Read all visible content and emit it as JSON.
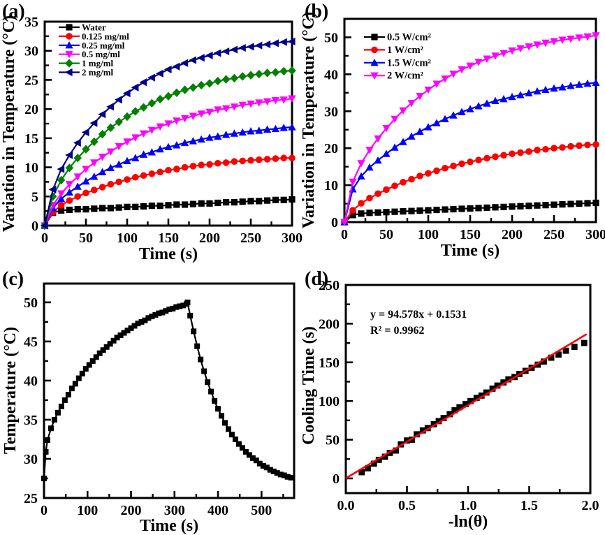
{
  "background": "#ffffff",
  "panel_labels": [
    "(a)",
    "(b)",
    "(c)",
    "(d)"
  ],
  "colors": {
    "black": "#000000",
    "red": "#ff0000",
    "blue": "#0000ff",
    "magenta": "#ff00ff",
    "green": "#008000",
    "navy": "#00008b",
    "fit_line": "#ff0000"
  },
  "chart_data": [
    {
      "type": "line",
      "panel": "a",
      "xlabel": "Time (s)",
      "ylabel": "Variation in Temperature (°C)",
      "xlim": [
        0,
        300
      ],
      "ylim": [
        0,
        35
      ],
      "xticks": [
        0,
        50,
        100,
        150,
        200,
        250,
        300
      ],
      "yticks": [
        0,
        5,
        10,
        15,
        20,
        25,
        30,
        35
      ],
      "x_minor": 25,
      "y_minor": 2.5,
      "grid": false,
      "legend": true,
      "legend_position": "top-left",
      "x": [
        0,
        10,
        20,
        30,
        40,
        50,
        60,
        70,
        80,
        90,
        100,
        110,
        120,
        130,
        140,
        150,
        160,
        170,
        180,
        190,
        200,
        210,
        220,
        230,
        240,
        250,
        260,
        270,
        280,
        290,
        300
      ],
      "series": [
        {
          "name": "Water",
          "color": "#000000",
          "marker": "square",
          "values": [
            0,
            2.2,
            2.6,
            2.7,
            2.8,
            2.8,
            2.9,
            3.0,
            3.0,
            3.1,
            3.2,
            3.2,
            3.3,
            3.4,
            3.4,
            3.5,
            3.6,
            3.6,
            3.7,
            3.8,
            3.8,
            3.9,
            4.0,
            4.0,
            4.1,
            4.2,
            4.2,
            4.3,
            4.4,
            4.4,
            4.5
          ]
        },
        {
          "name": "0.125 mg/ml",
          "color": "#ff0000",
          "marker": "circle",
          "values": [
            0,
            2.3,
            3.5,
            4.3,
            5.0,
            5.6,
            6.1,
            6.6,
            7.1,
            7.5,
            7.9,
            8.3,
            8.6,
            8.9,
            9.2,
            9.5,
            9.7,
            10.0,
            10.2,
            10.4,
            10.5,
            10.7,
            10.8,
            11.0,
            11.1,
            11.2,
            11.3,
            11.4,
            11.5,
            11.6,
            11.6
          ]
        },
        {
          "name": "0.25 mg/ml",
          "color": "#0000ff",
          "marker": "triangle-up",
          "values": [
            0,
            3.0,
            4.6,
            5.7,
            6.7,
            7.6,
            8.4,
            9.2,
            9.9,
            10.5,
            11.1,
            11.6,
            12.2,
            12.6,
            13.1,
            13.5,
            13.8,
            14.2,
            14.5,
            14.8,
            15.1,
            15.3,
            15.6,
            15.8,
            16.0,
            16.2,
            16.3,
            16.5,
            16.6,
            16.8,
            16.9
          ]
        },
        {
          "name": "0.5 mg/ml",
          "color": "#ff00ff",
          "marker": "triangle-down",
          "values": [
            0,
            3.5,
            5.5,
            7.1,
            8.4,
            9.7,
            10.8,
            11.8,
            12.7,
            13.6,
            14.4,
            15.1,
            15.8,
            16.4,
            17.0,
            17.5,
            18.0,
            18.4,
            18.8,
            19.2,
            19.5,
            19.9,
            20.1,
            20.4,
            20.7,
            20.9,
            21.1,
            21.3,
            21.5,
            21.6,
            21.8
          ]
        },
        {
          "name": "1 mg/ml",
          "color": "#008000",
          "marker": "diamond",
          "values": [
            0,
            5.0,
            7.8,
            9.9,
            11.6,
            13.1,
            14.4,
            15.7,
            16.8,
            17.8,
            18.7,
            19.6,
            20.3,
            21.0,
            21.7,
            22.2,
            22.8,
            23.3,
            23.7,
            24.1,
            24.4,
            24.8,
            25.1,
            25.3,
            25.6,
            25.8,
            26.0,
            26.2,
            26.3,
            26.5,
            26.6
          ]
        },
        {
          "name": "2 mg/ml",
          "color": "#00008b",
          "marker": "triangle-left",
          "values": [
            0,
            6.2,
            9.7,
            12.1,
            14.2,
            16.0,
            17.6,
            19.1,
            20.4,
            21.6,
            22.7,
            23.7,
            24.6,
            25.4,
            26.1,
            26.8,
            27.3,
            27.9,
            28.4,
            28.8,
            29.2,
            29.6,
            29.9,
            30.2,
            30.5,
            30.7,
            30.9,
            31.1,
            31.3,
            31.5,
            31.6
          ]
        }
      ]
    },
    {
      "type": "line",
      "panel": "b",
      "xlabel": "Time (s)",
      "ylabel": "Variation in Temperature (°C)",
      "xlim": [
        0,
        300
      ],
      "ylim": [
        0,
        55
      ],
      "xticks": [
        0,
        50,
        100,
        150,
        200,
        250,
        300
      ],
      "yticks": [
        0,
        10,
        20,
        30,
        40,
        50
      ],
      "x_minor": 25,
      "y_minor": 5,
      "grid": false,
      "legend": true,
      "legend_position": "top-left",
      "x": [
        0,
        10,
        20,
        30,
        40,
        50,
        60,
        70,
        80,
        90,
        100,
        110,
        120,
        130,
        140,
        150,
        160,
        170,
        180,
        190,
        200,
        210,
        220,
        230,
        240,
        250,
        260,
        270,
        280,
        290,
        300
      ],
      "series": [
        {
          "name": "0.5 W/cm²",
          "color": "#000000",
          "marker": "square",
          "values": [
            0,
            1.9,
            2.3,
            2.5,
            2.6,
            2.7,
            2.8,
            2.9,
            3.0,
            3.1,
            3.2,
            3.3,
            3.4,
            3.5,
            3.6,
            3.7,
            3.8,
            3.9,
            4.0,
            4.1,
            4.2,
            4.3,
            4.4,
            4.5,
            4.6,
            4.7,
            4.8,
            4.9,
            5.0,
            5.1,
            5.2
          ]
        },
        {
          "name": "1 W/cm²",
          "color": "#ff0000",
          "marker": "circle",
          "values": [
            0,
            3.2,
            5.1,
            6.5,
            7.7,
            8.8,
            9.8,
            10.8,
            11.6,
            12.5,
            13.2,
            13.9,
            14.6,
            15.2,
            15.8,
            16.3,
            16.8,
            17.3,
            17.7,
            18.1,
            18.5,
            18.8,
            19.1,
            19.5,
            19.7,
            20.0,
            20.2,
            20.5,
            20.7,
            20.9,
            21.0
          ]
        },
        {
          "name": "1.5 W/cm²",
          "color": "#0000ff",
          "marker": "triangle-up",
          "values": [
            0,
            8.9,
            12.4,
            14.8,
            16.7,
            18.5,
            20.2,
            21.7,
            23.2,
            24.5,
            25.7,
            26.8,
            27.9,
            28.9,
            29.8,
            30.6,
            31.4,
            32.1,
            32.8,
            33.3,
            33.9,
            34.4,
            34.9,
            35.4,
            35.8,
            36.2,
            36.5,
            36.9,
            37.2,
            37.5,
            37.7
          ]
        },
        {
          "name": "2 W/cm²",
          "color": "#ff00ff",
          "marker": "triangle-down",
          "values": [
            0,
            10.9,
            15.9,
            19.5,
            22.6,
            25.4,
            27.9,
            30.2,
            32.2,
            34.1,
            35.8,
            37.4,
            38.8,
            40.1,
            41.3,
            42.3,
            43.3,
            44.2,
            45.0,
            45.7,
            46.4,
            47.0,
            47.5,
            48.0,
            48.5,
            48.9,
            49.3,
            49.6,
            49.9,
            50.2,
            50.5
          ]
        }
      ]
    },
    {
      "type": "line",
      "panel": "c",
      "xlabel": "Time (s)",
      "ylabel": "Temperature (°C)",
      "xlim": [
        0,
        575
      ],
      "ylim": [
        25,
        52.4
      ],
      "xticks": [
        0,
        100,
        200,
        300,
        400,
        500
      ],
      "yticks": [
        25,
        30,
        35,
        40,
        45,
        50
      ],
      "x_minor": 50,
      "y_minor": 2.5,
      "grid": false,
      "legend": false,
      "series": [
        {
          "name": "Temperature",
          "color": "#000000",
          "marker": "square",
          "msize": 4.0,
          "x": [
            0,
            4,
            8,
            16,
            24,
            32,
            40,
            48,
            56,
            64,
            72,
            80,
            88,
            96,
            104,
            112,
            120,
            128,
            136,
            144,
            152,
            160,
            168,
            176,
            184,
            192,
            200,
            208,
            216,
            224,
            232,
            240,
            248,
            256,
            264,
            272,
            280,
            288,
            296,
            304,
            312,
            320,
            328,
            330,
            336,
            344,
            352,
            360,
            368,
            376,
            384,
            392,
            400,
            408,
            416,
            424,
            432,
            440,
            448,
            456,
            464,
            472,
            480,
            488,
            496,
            504,
            512,
            520,
            528,
            536,
            544,
            552,
            560,
            568
          ],
          "values": [
            27.5,
            30.9,
            32.4,
            33.9,
            35.0,
            35.9,
            36.7,
            37.5,
            38.2,
            39.0,
            39.6,
            40.3,
            40.9,
            41.5,
            42.0,
            42.5,
            43.0,
            43.5,
            43.9,
            44.3,
            44.7,
            45.1,
            45.5,
            45.8,
            46.1,
            46.4,
            46.7,
            47.0,
            47.3,
            47.5,
            47.7,
            48.0,
            48.2,
            48.4,
            48.6,
            48.7,
            48.9,
            49.1,
            49.2,
            49.4,
            49.5,
            49.6,
            49.8,
            50.0,
            48.3,
            46.3,
            44.4,
            42.7,
            41.2,
            39.8,
            38.6,
            37.4,
            36.4,
            35.5,
            34.6,
            33.8,
            33.1,
            32.5,
            31.9,
            31.4,
            30.9,
            30.5,
            30.1,
            29.8,
            29.4,
            29.1,
            28.9,
            28.6,
            28.4,
            28.2,
            28.0,
            27.9,
            27.7,
            27.6
          ]
        }
      ]
    },
    {
      "type": "scatter",
      "panel": "d",
      "xlabel": "-ln(θ)",
      "ylabel": "Cooling Time (s)",
      "xlim": [
        0,
        2.0
      ],
      "ylim": [
        -19,
        250
      ],
      "xticks": [
        0,
        0.5,
        1.0,
        1.5,
        2.0
      ],
      "xtick_labels": [
        "0.0",
        "0.5",
        "1.0",
        "1.5",
        "2.0"
      ],
      "yticks": [
        0,
        50,
        100,
        150,
        200,
        250
      ],
      "x_minor": 0.25,
      "y_minor": 25,
      "grid": false,
      "legend": false,
      "points_marker": "square",
      "points_color": "#000000",
      "points_x": [
        0.13,
        0.18,
        0.23,
        0.27,
        0.32,
        0.36,
        0.41,
        0.45,
        0.5,
        0.54,
        0.58,
        0.63,
        0.67,
        0.72,
        0.76,
        0.8,
        0.85,
        0.89,
        0.93,
        0.98,
        1.02,
        1.07,
        1.11,
        1.15,
        1.2,
        1.24,
        1.29,
        1.33,
        1.38,
        1.42,
        1.47,
        1.52,
        1.57,
        1.62,
        1.68,
        1.74,
        1.8,
        1.87,
        1.95
      ],
      "points_y": [
        8,
        13,
        19,
        24,
        28,
        33,
        36,
        44,
        49,
        50,
        57,
        62,
        65,
        70,
        74,
        78,
        83,
        88,
        92,
        96,
        100,
        104,
        107,
        111,
        116,
        120,
        124,
        128,
        131,
        135,
        139,
        143,
        147,
        151,
        156,
        160,
        165,
        170,
        175
      ],
      "fit": {
        "slope": 94.578,
        "intercept": 0.1531,
        "r2": 0.9962,
        "x_range": [
          0,
          1.97
        ],
        "color": "#ff0000"
      },
      "annotation": [
        "y = 94.578x + 0.1531",
        "R² = 0.9962"
      ]
    }
  ]
}
